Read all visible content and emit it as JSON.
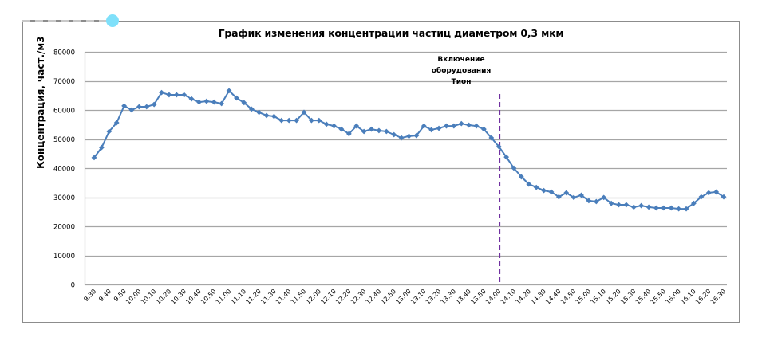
{
  "chart_data": {
    "type": "line",
    "title": "График изменения концентрации частиц диаметром 0,3 мкм",
    "xlabel": "",
    "ylabel": "Концентрация, част./м3",
    "ylim": [
      0,
      80000
    ],
    "yticks": [
      0,
      10000,
      20000,
      30000,
      40000,
      50000,
      60000,
      70000,
      80000
    ],
    "grid": true,
    "legend": null,
    "x_tick_labels": [
      "9:30",
      "9:40",
      "9:50",
      "10:00",
      "10:10",
      "10:20",
      "10:30",
      "10:40",
      "10:50",
      "11:00",
      "11:10",
      "11:20",
      "11:30",
      "11:40",
      "11:50",
      "12:00",
      "12:10",
      "12:20",
      "12:30",
      "12:40",
      "12:50",
      "13:00",
      "13:10",
      "13:20",
      "13:30",
      "13:40",
      "13:50",
      "14:00",
      "14:10",
      "14:20",
      "14:30",
      "14:40",
      "14:50",
      "15:00",
      "15:10",
      "15:20",
      "15:30",
      "15:40",
      "15:50",
      "16:00",
      "16:10",
      "16:20",
      "16:30"
    ],
    "x_interval_minutes": 5,
    "series": [
      {
        "name": "Концентрация 0,3 мкм",
        "color": "#4a7ebb",
        "marker": "diamond",
        "values": [
          43600,
          47100,
          52600,
          55600,
          61400,
          60000,
          61100,
          61100,
          61900,
          66000,
          65200,
          65200,
          65200,
          63800,
          62700,
          63000,
          62700,
          62200,
          66600,
          64100,
          62500,
          60300,
          59200,
          58100,
          57800,
          56400,
          56400,
          56400,
          59200,
          56400,
          56400,
          55100,
          54500,
          53400,
          51800,
          54500,
          52600,
          53400,
          52900,
          52600,
          51500,
          50400,
          51000,
          51200,
          54500,
          53200,
          53700,
          54500,
          54500,
          55300,
          54800,
          54500,
          53400,
          50400,
          47400,
          43800,
          40000,
          37000,
          34500,
          33400,
          32300,
          31800,
          30100,
          31500,
          29900,
          30700,
          28800,
          28500,
          29900,
          27900,
          27400,
          27400,
          26600,
          27100,
          26600,
          26300,
          26300,
          26300,
          26000,
          26000,
          27900,
          30100,
          31500,
          31800,
          30100
        ]
      }
    ],
    "annotations": [
      {
        "text_lines": [
          "Включение",
          "оборудования",
          "Тион"
        ],
        "x_label": "14:00",
        "type": "vertical-dashed-line",
        "color": "#7030a0"
      }
    ]
  },
  "colors": {
    "line": "#4a7ebb",
    "grid": "#a6a6a6",
    "axis": "#a6a6a6",
    "marker_line": "#7030a0",
    "cursor": "#7fe0fa"
  }
}
